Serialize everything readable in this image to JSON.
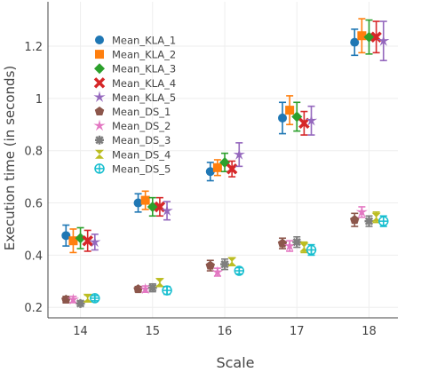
{
  "chart_data": {
    "type": "scatter",
    "xlabel": "Scale",
    "ylabel": "Execution time (in seconds)",
    "x_ticks": [
      14,
      15,
      16,
      17,
      18
    ],
    "y_ticks": [
      0.2,
      0.4,
      0.6,
      0.8,
      1,
      1.2
    ],
    "xlim": [
      13.55,
      18.4
    ],
    "ylim": [
      0.16,
      1.37
    ],
    "grid": true,
    "legend_position": "top-left",
    "series": [
      {
        "name": "Mean_KLA_1",
        "marker": "circle",
        "color": "#1f77b4",
        "offset": -0.2,
        "values": [
          0.475,
          0.6,
          0.72,
          0.925,
          1.215
        ],
        "errors": [
          0.04,
          0.035,
          0.035,
          0.06,
          0.05
        ]
      },
      {
        "name": "Mean_KLA_2",
        "marker": "square",
        "color": "#ff7f0e",
        "offset": -0.1,
        "values": [
          0.455,
          0.61,
          0.735,
          0.955,
          1.24
        ],
        "errors": [
          0.045,
          0.035,
          0.03,
          0.055,
          0.065
        ]
      },
      {
        "name": "Mean_KLA_3",
        "marker": "diamond",
        "color": "#2ca02c",
        "offset": 0.0,
        "values": [
          0.465,
          0.585,
          0.755,
          0.93,
          1.235
        ],
        "errors": [
          0.04,
          0.035,
          0.035,
          0.055,
          0.065
        ]
      },
      {
        "name": "Mean_KLA_4",
        "marker": "x",
        "color": "#d62728",
        "offset": 0.1,
        "values": [
          0.455,
          0.585,
          0.73,
          0.905,
          1.235
        ],
        "errors": [
          0.04,
          0.035,
          0.03,
          0.045,
          0.06
        ]
      },
      {
        "name": "Mean_KLA_5",
        "marker": "star",
        "color": "#9467bd",
        "offset": 0.2,
        "values": [
          0.45,
          0.57,
          0.785,
          0.915,
          1.22
        ],
        "errors": [
          0.03,
          0.035,
          0.045,
          0.055,
          0.075
        ]
      },
      {
        "name": "Mean_DS_1",
        "marker": "pentagon",
        "color": "#8c564b",
        "offset": -0.2,
        "values": [
          0.23,
          0.27,
          0.36,
          0.445,
          0.535
        ],
        "errors": [
          0.012,
          0.01,
          0.02,
          0.02,
          0.025
        ]
      },
      {
        "name": "Mean_DS_2",
        "marker": "star",
        "color": "#e377c2",
        "offset": -0.1,
        "values": [
          0.23,
          0.27,
          0.335,
          0.435,
          0.565
        ],
        "errors": [
          0.012,
          0.012,
          0.015,
          0.02,
          0.02
        ]
      },
      {
        "name": "Mean_DS_3",
        "marker": "asterisk",
        "color": "#7f7f7f",
        "offset": 0.0,
        "values": [
          0.215,
          0.275,
          0.365,
          0.45,
          0.53
        ],
        "errors": [
          0.01,
          0.015,
          0.02,
          0.02,
          0.02
        ]
      },
      {
        "name": "Mean_DS_4",
        "marker": "hourglass",
        "color": "#bcbd22",
        "offset": 0.1,
        "values": [
          0.235,
          0.295,
          0.375,
          0.43,
          0.545
        ],
        "errors": [
          0.012,
          0.015,
          0.015,
          0.02,
          0.02
        ]
      },
      {
        "name": "Mean_DS_5",
        "marker": "circle-cross-open",
        "color": "#17becf",
        "offset": 0.2,
        "values": [
          0.235,
          0.265,
          0.34,
          0.42,
          0.53
        ],
        "errors": [
          0.01,
          0.015,
          0.012,
          0.02,
          0.02
        ]
      }
    ]
  }
}
